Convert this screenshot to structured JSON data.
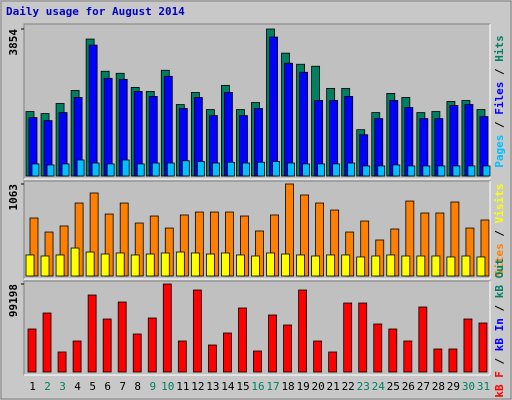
{
  "chart_data": [
    {
      "type": "bar",
      "title": "Daily usage for August 2014",
      "ylim": [
        0,
        3854
      ],
      "yticks": [
        3854
      ],
      "legend_separator": " / ",
      "series": [
        {
          "name": "Hits",
          "color": "#008060",
          "values": [
            1690,
            1637,
            1901,
            2244,
            3590,
            2746,
            2693,
            2323,
            2218,
            2772,
            1874,
            2191,
            1742,
            2376,
            1742,
            1927,
            3854,
            3221,
            2930,
            2878,
            2297,
            2297,
            1214,
            1663,
            2165,
            2059,
            1663,
            1690,
            1954,
            1980,
            1742
          ]
        },
        {
          "name": "Files",
          "color": "#0000ff",
          "values": [
            1531,
            1452,
            1663,
            2059,
            3432,
            2561,
            2534,
            2218,
            2086,
            2614,
            1769,
            2059,
            1584,
            2191,
            1584,
            1769,
            3643,
            2957,
            2719,
            1980,
            1980,
            2086,
            1082,
            1505,
            1980,
            1795,
            1505,
            1505,
            1848,
            1874,
            1558
          ]
        },
        {
          "name": "Pages",
          "color": "#00c0ff",
          "values": [
            317,
            290,
            317,
            420,
            340,
            317,
            420,
            317,
            340,
            340,
            400,
            380,
            340,
            360,
            340,
            360,
            380,
            340,
            317,
            317,
            317,
            340,
            264,
            264,
            290,
            264,
            264,
            264,
            264,
            264,
            264
          ]
        }
      ]
    },
    {
      "type": "bar",
      "ylim": [
        0,
        1063
      ],
      "yticks": [
        1063
      ],
      "series": [
        {
          "name": "Visits",
          "color": "#ff8000",
          "label_color": "#ffff00",
          "values": [
            670,
            508,
            578,
            843,
            959,
            716,
            843,
            612,
            693,
            554,
            705,
            739,
            739,
            739,
            693,
            520,
            705,
            1063,
            936,
            843,
            762,
            508,
            635,
            416,
            543,
            866,
            728,
            728,
            855,
            554,
            647
          ]
        },
        {
          "name": "Sites",
          "color": "#ffff00",
          "label_color": "#ff8000",
          "values": [
            243,
            231,
            243,
            323,
            277,
            254,
            266,
            243,
            254,
            266,
            277,
            266,
            254,
            266,
            243,
            231,
            266,
            254,
            243,
            231,
            243,
            243,
            220,
            231,
            243,
            231,
            231,
            231,
            220,
            231,
            220
          ]
        }
      ]
    },
    {
      "type": "bar",
      "ylim": [
        0,
        99198
      ],
      "yticks": [
        99198
      ],
      "categories": [
        "1",
        "2",
        "3",
        "4",
        "5",
        "6",
        "7",
        "8",
        "9",
        "10",
        "11",
        "12",
        "13",
        "14",
        "15",
        "16",
        "17",
        "18",
        "19",
        "20",
        "21",
        "22",
        "23",
        "24",
        "25",
        "26",
        "27",
        "28",
        "29",
        "30",
        "31"
      ],
      "category_colors": [
        "#000000",
        "#008060",
        "#008060",
        "#000000",
        "#000000",
        "#000000",
        "#000000",
        "#000000",
        "#008060",
        "#008060",
        "#000000",
        "#000000",
        "#000000",
        "#000000",
        "#000000",
        "#008060",
        "#008060",
        "#000000",
        "#000000",
        "#000000",
        "#000000",
        "#000000",
        "#008060",
        "#008060",
        "#000000",
        "#000000",
        "#000000",
        "#000000",
        "#000000",
        "#008060",
        "#008060"
      ],
      "series": [
        {
          "name": "kB F",
          "color": "#ff0000",
          "values": [
            48461,
            66493,
            22540,
            34937,
            86779,
            59731,
            78890,
            42826,
            60858,
            99198,
            34937,
            92414,
            30429,
            43953,
            72128,
            23667,
            64239,
            52969,
            92414,
            34937,
            22540,
            77763,
            77763,
            54096,
            48461,
            34937,
            73255,
            25921,
            25921,
            59731,
            55223
          ]
        }
      ],
      "extra_labels": [
        {
          "text": "kB In",
          "color": "#0000ff"
        },
        {
          "text": "kB Out",
          "color": "#008060"
        }
      ]
    }
  ]
}
